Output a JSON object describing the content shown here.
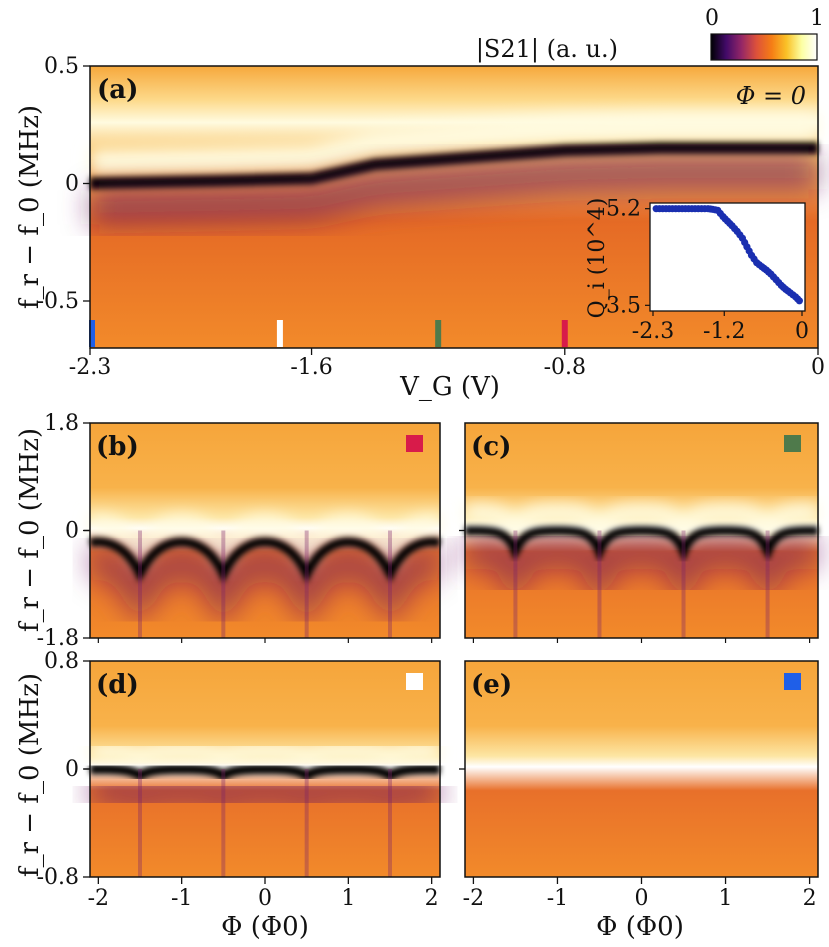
{
  "chart_data": [
    {
      "type": "heatmap",
      "panel_label": "(a)",
      "annotation": "Φ = 0",
      "xlabel": "V_G (V)",
      "ylabel": "f_r − f_0 (MHz)",
      "xlim": [
        -2.3,
        0
      ],
      "ylim": [
        -0.7,
        0.5
      ],
      "x_ticks": [
        "-2.3",
        "-1.6",
        "-0.8",
        "0"
      ],
      "y_ticks": [
        "0.5",
        "0",
        "-0.5"
      ],
      "resonance_profile": {
        "vg": [
          -2.3,
          -1.9,
          -1.6,
          -1.5,
          -1.4,
          -1.2,
          -1.0,
          -0.8,
          -0.5,
          -0.2,
          0.0
        ],
        "f_mhz": [
          0.0,
          0.01,
          0.02,
          0.05,
          0.08,
          0.1,
          0.12,
          0.14,
          0.15,
          0.15,
          0.15
        ]
      },
      "markers": [
        {
          "vg": -2.3,
          "color": "#1f5fe8",
          "panel": "(e)"
        },
        {
          "vg": -1.7,
          "color": "#ffffff",
          "panel": "(d)"
        },
        {
          "vg": -1.2,
          "color": "#4f7a4b",
          "panel": "(c)"
        },
        {
          "vg": -0.8,
          "color": "#d81b4a",
          "panel": "(b)"
        }
      ],
      "inset": {
        "type": "scatter",
        "xlabel": "",
        "ylabel": "Q_i (10^4)",
        "xlim": [
          -2.3,
          0
        ],
        "ylim": [
          3.4,
          5.3
        ],
        "x_ticks": [
          "-2.3",
          "-1.2",
          "0"
        ],
        "y_ticks": [
          "5.2",
          "3.5"
        ],
        "x": [
          -2.25,
          -2.15,
          -2.05,
          -1.95,
          -1.85,
          -1.75,
          -1.65,
          -1.55,
          -1.45,
          -1.38,
          -1.3,
          -1.22,
          -1.15,
          -1.08,
          -1.0,
          -0.92,
          -0.85,
          -0.78,
          -0.7,
          -0.62,
          -0.55,
          -0.48,
          -0.4,
          -0.32,
          -0.25,
          -0.18,
          -0.1,
          -0.04
        ],
        "y": [
          5.2,
          5.2,
          5.2,
          5.2,
          5.2,
          5.2,
          5.2,
          5.2,
          5.2,
          5.19,
          5.17,
          5.06,
          4.98,
          4.9,
          4.8,
          4.68,
          4.53,
          4.38,
          4.25,
          4.18,
          4.12,
          4.05,
          3.95,
          3.85,
          3.78,
          3.72,
          3.65,
          3.58
        ]
      }
    },
    {
      "type": "heatmap",
      "panel_label": "(b)",
      "marker_color": "#d81b4a",
      "vg": -0.8,
      "ylim": [
        -1.8,
        1.8
      ],
      "y_ticks": [
        "1.8",
        "0",
        "-1.8"
      ],
      "xlim": [
        -2.1,
        2.1
      ],
      "dip_depth_mhz": 0.7,
      "dip_width": 0.25
    },
    {
      "type": "heatmap",
      "panel_label": "(c)",
      "marker_color": "#4f7a4b",
      "vg": -1.2,
      "ylim": [
        -1.8,
        1.8
      ],
      "xlim": [
        -2.1,
        2.1
      ],
      "dip_depth_mhz": 0.35,
      "dip_width": 0.1
    },
    {
      "type": "heatmap",
      "panel_label": "(d)",
      "marker_color": "#ffffff",
      "vg": -1.7,
      "ylim": [
        -0.8,
        0.8
      ],
      "y_ticks": [
        "0.8",
        "0",
        "-0.8"
      ],
      "xlim": [
        -2.1,
        2.1
      ],
      "x_ticks": [
        "-2",
        "-1",
        "0",
        "1",
        "2"
      ],
      "dip_depth_mhz": 0.05,
      "dip_width": 0.12,
      "xlabel": "Φ (Φ0)"
    },
    {
      "type": "heatmap",
      "panel_label": "(e)",
      "marker_color": "#1f5fe8",
      "vg": -2.3,
      "ylim": [
        -0.8,
        0.8
      ],
      "xlim": [
        -2.1,
        2.1
      ],
      "x_ticks": [
        "-2",
        "-1",
        "0",
        "1",
        "2"
      ],
      "dip_depth_mhz": 0.0,
      "dip_width": 0.1,
      "xlabel": "Φ (Φ0)"
    }
  ],
  "colorbar": {
    "label": "|S21| (a. u.)",
    "min_label": "0",
    "max_label": "1",
    "colormap": [
      "#000004",
      "#420a68",
      "#932667",
      "#dd513a",
      "#f57d15",
      "#fac228",
      "#fcffa4",
      "#ffffff"
    ]
  },
  "colors": {
    "background": "#f28a2a",
    "dark": "#000004",
    "bright": "#fffbe0"
  }
}
